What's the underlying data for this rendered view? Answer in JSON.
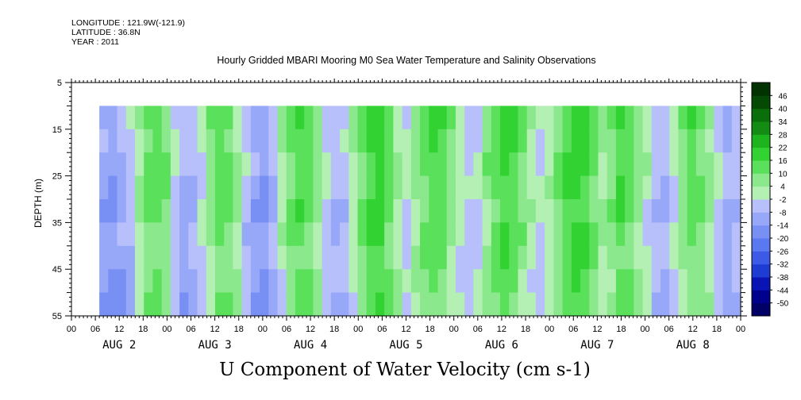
{
  "header": {
    "longitude": "LONGITUDE : 121.9W(-121.9)",
    "latitude": "LATITUDE : 36.8N",
    "year": "YEAR : 2011"
  },
  "chart_data": {
    "type": "heatmap",
    "title": "Hourly Gridded MBARI Mooring M0 Sea Water Temperature and Salinity Observations",
    "variable_title": "U Component of Water Velocity (cm s-1)",
    "ylabel": "DEPTH (m)",
    "y_ticks": [
      5,
      15,
      25,
      35,
      45,
      55
    ],
    "ylim": [
      5,
      55
    ],
    "y_inverted": true,
    "x_hour_ticks": [
      "00",
      "06",
      "12",
      "18",
      "00",
      "06",
      "12",
      "18",
      "00",
      "06",
      "12",
      "18",
      "00",
      "06",
      "12",
      "18",
      "00",
      "06",
      "12",
      "18",
      "00",
      "06",
      "12",
      "18",
      "00",
      "06",
      "12",
      "18",
      "00"
    ],
    "x_day_labels": [
      "AUG  2",
      "AUG  3",
      "AUG  4",
      "AUG  5",
      "AUG  6",
      "AUG  7",
      "AUG  8"
    ],
    "data_depth_range": [
      10,
      55
    ],
    "colorbar": {
      "levels": [
        -50,
        -44,
        -38,
        -32,
        -26,
        -20,
        -14,
        -8,
        -2,
        4,
        10,
        16,
        22,
        28,
        34,
        40,
        46
      ],
      "label_every": 1,
      "colors": [
        "#000066",
        "#00008c",
        "#0a14b4",
        "#1e3cd2",
        "#3c5ae6",
        "#5a78f0",
        "#7890f4",
        "#98a8f8",
        "#b8c0fc",
        "#b4f0b4",
        "#8ce88c",
        "#5ae05a",
        "#32d232",
        "#1eb41e",
        "#148c14",
        "#0a6e0a",
        "#044a04",
        "#023202"
      ]
    },
    "time_columns_velocity_cm_s": [
      -12,
      -14,
      -10,
      -6,
      4,
      10,
      12,
      8,
      -4,
      -10,
      -8,
      -2,
      6,
      12,
      10,
      4,
      -6,
      -12,
      -14,
      -8,
      2,
      10,
      14,
      12,
      6,
      -4,
      -8,
      -6,
      2,
      10,
      16,
      18,
      12,
      4,
      -2,
      4,
      10,
      14,
      12,
      6,
      0,
      -4,
      -2,
      6,
      12,
      16,
      14,
      8,
      2,
      -2,
      2,
      8,
      14,
      18,
      16,
      10,
      4,
      8,
      14,
      12,
      6,
      0,
      -6,
      -8,
      -2,
      6,
      12,
      10,
      4,
      -4,
      -10,
      -6
    ]
  }
}
